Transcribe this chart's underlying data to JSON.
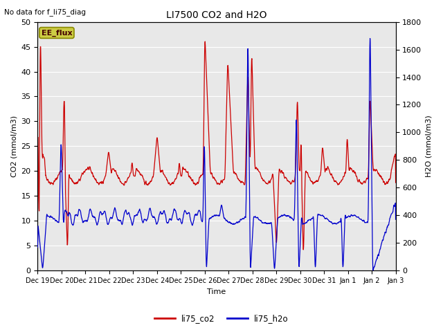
{
  "title": "LI7500 CO2 and H2O",
  "top_left_text": "No data for f_li75_diag",
  "xlabel": "Time",
  "ylabel_left": "CO2 (mmol/m3)",
  "ylabel_right": "H2O (mmol/m3)",
  "ylim_left": [
    0,
    50
  ],
  "ylim_right": [
    0,
    1800
  ],
  "yticks_left": [
    0,
    5,
    10,
    15,
    20,
    25,
    30,
    35,
    40,
    45,
    50
  ],
  "yticks_right": [
    0,
    200,
    400,
    600,
    800,
    1000,
    1200,
    1400,
    1600,
    1800
  ],
  "n_days": 15,
  "xtick_labels": [
    "Dec 19",
    "Dec 20",
    "Dec 21",
    "Dec 22",
    "Dec 23",
    "Dec 24",
    "Dec 25",
    "Dec 26",
    "Dec 27",
    "Dec 28",
    "Dec 29",
    "Dec 30",
    "Dec 31",
    "Jan 1",
    "Jan 2",
    "Jan 3"
  ],
  "color_co2": "#cc0000",
  "color_h2o": "#0000cc",
  "legend_label_co2": "li75_co2",
  "legend_label_h2o": "li75_h2o",
  "annotation_label": "EE_flux",
  "annotation_bg": "#cccc44",
  "annotation_edge": "#888800",
  "plot_bg_color": "#e8e8e8",
  "grid_color": "#ffffff",
  "linewidth_co2": 0.9,
  "linewidth_h2o": 0.9
}
